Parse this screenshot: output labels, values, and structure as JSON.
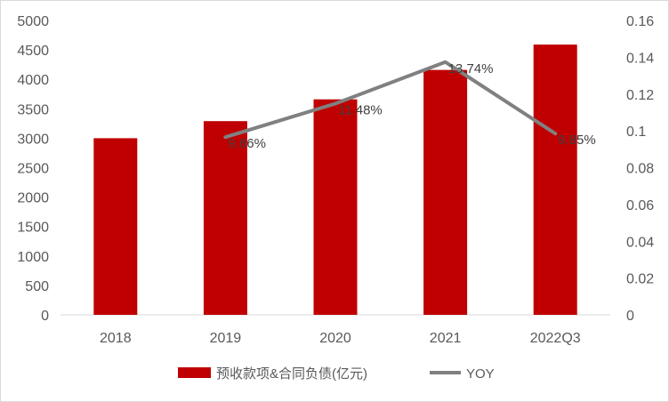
{
  "chart_data": {
    "type": "bar",
    "categories": [
      "2018",
      "2019",
      "2020",
      "2021",
      "2022Q3"
    ],
    "series": [
      {
        "name": "预收款项&合同负债(亿元)",
        "type": "bar",
        "axis": "left",
        "color": "#c00000",
        "values": [
          3000,
          3290,
          3660,
          4160,
          4590
        ]
      },
      {
        "name": "YOY",
        "type": "line",
        "axis": "right",
        "color": "#808080",
        "values": [
          null,
          0.0966,
          0.1148,
          0.1374,
          0.0985
        ],
        "data_labels": [
          "",
          "9.66%",
          "11.48%",
          "13.74%",
          "9.85%"
        ]
      }
    ],
    "y_left": {
      "ylim": [
        0,
        5000
      ],
      "ticks": [
        "0",
        "500",
        "1000",
        "1500",
        "2000",
        "2500",
        "3000",
        "3500",
        "4000",
        "4500",
        "5000"
      ]
    },
    "y_right": {
      "ylim": [
        0,
        0.16
      ],
      "ticks": [
        "0",
        "0.02",
        "0.04",
        "0.06",
        "0.08",
        "0.1",
        "0.12",
        "0.14",
        "0.16"
      ]
    },
    "grid": false,
    "legend": "bottom-center"
  }
}
